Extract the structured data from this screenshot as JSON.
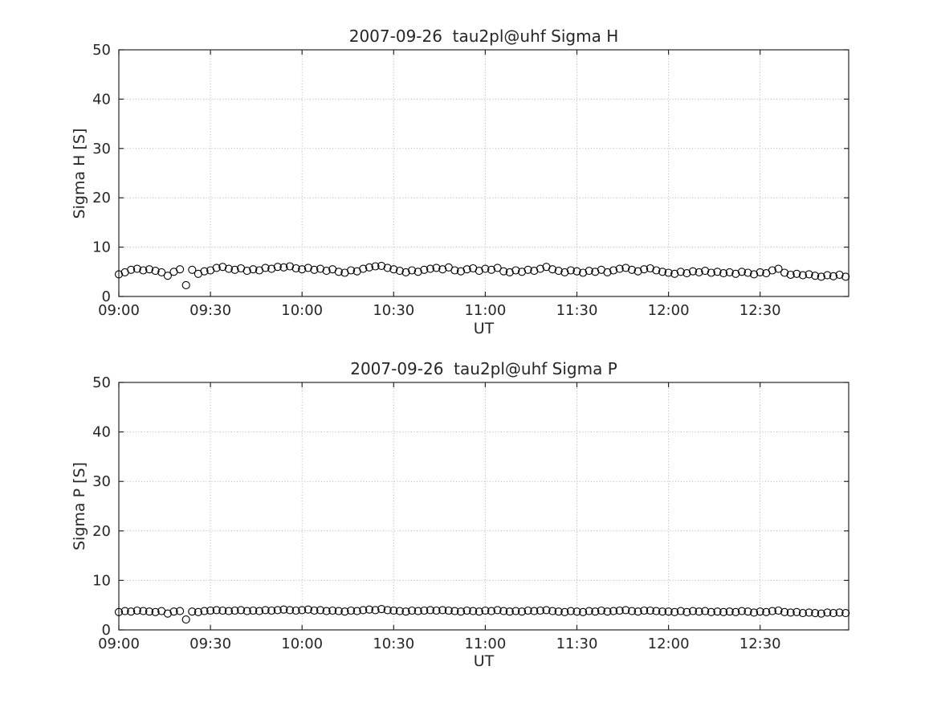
{
  "figure": {
    "background": "#ffffff",
    "axis_color": "#262626",
    "grid_color": "#b3b3b3",
    "marker_color": "#000000"
  },
  "chart_data": [
    {
      "type": "scatter",
      "name": "sigma-h-scatter",
      "title": "2007-09-26  tau2pl@uhf Sigma H",
      "xlabel": "UT",
      "ylabel": "Sigma H [S]",
      "marker": "open-circle",
      "grid": true,
      "ylim": [
        0,
        50
      ],
      "yticks": [
        0,
        10,
        20,
        30,
        40,
        50
      ],
      "xlim_minutes": [
        540,
        779
      ],
      "xticks_minutes": [
        540,
        570,
        600,
        630,
        660,
        690,
        720,
        750
      ],
      "xtick_labels": [
        "09:00",
        "09:30",
        "10:00",
        "10:30",
        "11:00",
        "11:30",
        "12:00",
        "12:30"
      ],
      "x_minutes": [
        540,
        542,
        544,
        546,
        548,
        550,
        552,
        554,
        556,
        558,
        560,
        562,
        564,
        566,
        568,
        570,
        572,
        574,
        576,
        578,
        580,
        582,
        584,
        586,
        588,
        590,
        592,
        594,
        596,
        598,
        600,
        602,
        604,
        606,
        608,
        610,
        612,
        614,
        616,
        618,
        620,
        622,
        624,
        626,
        628,
        630,
        632,
        634,
        636,
        638,
        640,
        642,
        644,
        646,
        648,
        650,
        652,
        654,
        656,
        658,
        660,
        662,
        664,
        666,
        668,
        670,
        672,
        674,
        676,
        678,
        680,
        682,
        684,
        686,
        688,
        690,
        692,
        694,
        696,
        698,
        700,
        702,
        704,
        706,
        708,
        710,
        712,
        714,
        716,
        718,
        720,
        722,
        724,
        726,
        728,
        730,
        732,
        734,
        736,
        738,
        740,
        742,
        744,
        746,
        748,
        750,
        752,
        754,
        756,
        758,
        760,
        762,
        764,
        766,
        768,
        770,
        772,
        774,
        776,
        778
      ],
      "y": [
        4.5,
        4.9,
        5.4,
        5.6,
        5.3,
        5.5,
        5.2,
        4.9,
        4.2,
        5.0,
        5.5,
        2.3,
        5.4,
        4.6,
        5.1,
        5.3,
        5.8,
        6.0,
        5.6,
        5.4,
        5.7,
        5.2,
        5.5,
        5.3,
        5.8,
        5.6,
        6.0,
        5.9,
        6.1,
        5.7,
        5.5,
        5.8,
        5.4,
        5.6,
        5.2,
        5.5,
        5.0,
        4.8,
        5.3,
        5.1,
        5.6,
        5.9,
        6.1,
        6.2,
        5.8,
        5.5,
        5.2,
        4.9,
        5.3,
        5.0,
        5.4,
        5.6,
        5.8,
        5.5,
        5.9,
        5.3,
        5.1,
        5.5,
        5.7,
        5.2,
        5.6,
        5.4,
        5.8,
        5.1,
        4.9,
        5.3,
        5.0,
        5.4,
        5.2,
        5.6,
        6.0,
        5.5,
        5.2,
        4.9,
        5.3,
        5.1,
        4.8,
        5.2,
        5.0,
        5.4,
        4.9,
        5.3,
        5.6,
        5.8,
        5.4,
        5.1,
        5.5,
        5.7,
        5.3,
        5.0,
        4.8,
        4.6,
        5.0,
        4.7,
        5.1,
        4.9,
        5.2,
        4.8,
        5.0,
        4.7,
        4.9,
        4.6,
        5.0,
        4.8,
        4.5,
        4.9,
        4.7,
        5.3,
        5.6,
        4.8,
        4.4,
        4.6,
        4.3,
        4.5,
        4.2,
        4.0,
        4.3,
        4.1,
        4.4,
        4.0
      ]
    },
    {
      "type": "scatter",
      "name": "sigma-p-scatter",
      "title": "2007-09-26  tau2pl@uhf Sigma P",
      "xlabel": "UT",
      "ylabel": "Sigma P [S]",
      "marker": "open-circle",
      "grid": true,
      "ylim": [
        0,
        50
      ],
      "yticks": [
        0,
        10,
        20,
        30,
        40,
        50
      ],
      "xlim_minutes": [
        540,
        779
      ],
      "xticks_minutes": [
        540,
        570,
        600,
        630,
        660,
        690,
        720,
        750
      ],
      "xtick_labels": [
        "09:00",
        "09:30",
        "10:00",
        "10:30",
        "11:00",
        "11:30",
        "12:00",
        "12:30"
      ],
      "x_minutes": [
        540,
        542,
        544,
        546,
        548,
        550,
        552,
        554,
        556,
        558,
        560,
        562,
        564,
        566,
        568,
        570,
        572,
        574,
        576,
        578,
        580,
        582,
        584,
        586,
        588,
        590,
        592,
        594,
        596,
        598,
        600,
        602,
        604,
        606,
        608,
        610,
        612,
        614,
        616,
        618,
        620,
        622,
        624,
        626,
        628,
        630,
        632,
        634,
        636,
        638,
        640,
        642,
        644,
        646,
        648,
        650,
        652,
        654,
        656,
        658,
        660,
        662,
        664,
        666,
        668,
        670,
        672,
        674,
        676,
        678,
        680,
        682,
        684,
        686,
        688,
        690,
        692,
        694,
        696,
        698,
        700,
        702,
        704,
        706,
        708,
        710,
        712,
        714,
        716,
        718,
        720,
        722,
        724,
        726,
        728,
        730,
        732,
        734,
        736,
        738,
        740,
        742,
        744,
        746,
        748,
        750,
        752,
        754,
        756,
        758,
        760,
        762,
        764,
        766,
        768,
        770,
        772,
        774,
        776,
        778
      ],
      "y": [
        3.6,
        3.8,
        3.7,
        3.9,
        3.8,
        3.7,
        3.6,
        3.8,
        3.3,
        3.7,
        3.8,
        2.1,
        3.7,
        3.6,
        3.8,
        3.9,
        4.0,
        3.9,
        3.8,
        3.9,
        4.0,
        3.8,
        3.9,
        3.8,
        4.0,
        3.9,
        4.0,
        4.1,
        4.0,
        3.9,
        4.0,
        4.1,
        3.9,
        4.0,
        3.8,
        3.9,
        3.8,
        3.7,
        3.9,
        3.8,
        4.0,
        4.1,
        4.0,
        4.2,
        4.0,
        3.9,
        3.8,
        3.7,
        3.9,
        3.8,
        3.9,
        4.0,
        3.9,
        4.0,
        3.9,
        3.8,
        3.7,
        3.9,
        3.8,
        3.7,
        3.9,
        3.8,
        4.0,
        3.8,
        3.7,
        3.8,
        3.7,
        3.9,
        3.8,
        3.9,
        4.0,
        3.8,
        3.7,
        3.6,
        3.8,
        3.7,
        3.6,
        3.8,
        3.7,
        3.9,
        3.7,
        3.8,
        3.9,
        4.0,
        3.8,
        3.7,
        3.9,
        3.9,
        3.8,
        3.7,
        3.7,
        3.6,
        3.8,
        3.6,
        3.8,
        3.7,
        3.8,
        3.6,
        3.7,
        3.6,
        3.7,
        3.6,
        3.8,
        3.7,
        3.5,
        3.7,
        3.6,
        3.8,
        3.9,
        3.6,
        3.5,
        3.6,
        3.4,
        3.5,
        3.4,
        3.3,
        3.5,
        3.4,
        3.5,
        3.4
      ]
    }
  ]
}
